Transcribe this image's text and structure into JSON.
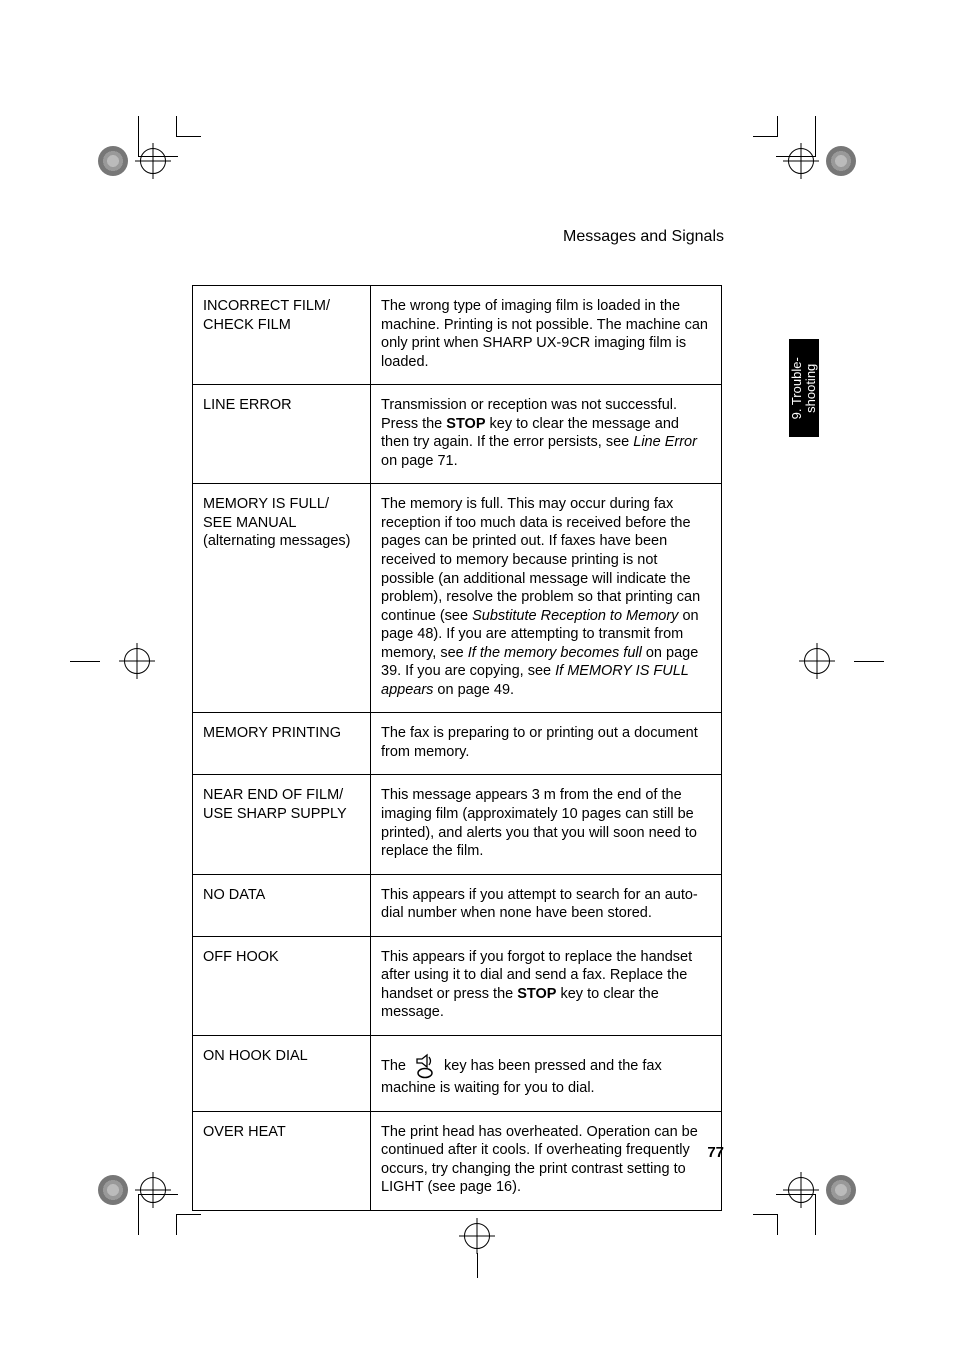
{
  "header": {
    "title": "Messages and Signals"
  },
  "tab": {
    "label": "9. Trouble-\nshooting"
  },
  "page_number": "77",
  "rows": [
    {
      "msg": "INCORRECT FILM/\nCHECK FILM",
      "desc": "The wrong type of imaging film is loaded in the machine. Printing is not possible. The machine can only print when SHARP UX-9CR imaging film  is loaded."
    },
    {
      "msg": "LINE ERROR",
      "desc_html": "Transmission or reception was not successful. Press the <b>STOP</b> key to clear the message and then try again. If the error persists, see <i>Line Error</i> on page 71."
    },
    {
      "msg": "MEMORY IS FULL/\nSEE MANUAL\n(alternating messages)",
      "desc_html": "The memory is full. This may occur during fax reception if too much data is received before the pages can be printed out. If faxes have been received to memory because printing is not possible (an additional message will indicate the problem), resolve the problem so that printing can continue (see <i>Substitute Reception to Memory</i> on page 48). If you are attempting to transmit from memory, see <i>If the memory becomes full</i> on page 39. If you are copying, see <i>If MEMORY IS FULL appears</i> on page 49."
    },
    {
      "msg": "MEMORY PRINTING",
      "desc": "The fax is preparing to or printing out a document from memory."
    },
    {
      "msg": "NEAR END OF FILM/\nUSE SHARP SUPPLY",
      "desc": "This message appears 3 m from the end of the imaging film  (approximately 10 pages can still be printed), and alerts you that you will soon need to replace the film."
    },
    {
      "msg": "NO DATA",
      "desc": "This appears if you attempt to search for an auto-dial number when none have been stored."
    },
    {
      "msg": "OFF HOOK",
      "desc_html": "This appears if you forgot to replace the handset after using it to dial and send a fax. Replace the handset or press the <b>STOP</b> key to clear the message."
    },
    {
      "msg": "ON HOOK DIAL",
      "desc_icon": true,
      "desc_pre": "The ",
      "desc_post": " key has been pressed and the fax machine is waiting for you to dial."
    },
    {
      "msg": "OVER HEAT",
      "desc": "The print head has overheated. Operation can be continued after it cools. If overheating frequently occurs, try changing the print contrast setting to LIGHT (see page 16)."
    }
  ],
  "colors": {
    "text": "#000000",
    "bg": "#ffffff"
  }
}
